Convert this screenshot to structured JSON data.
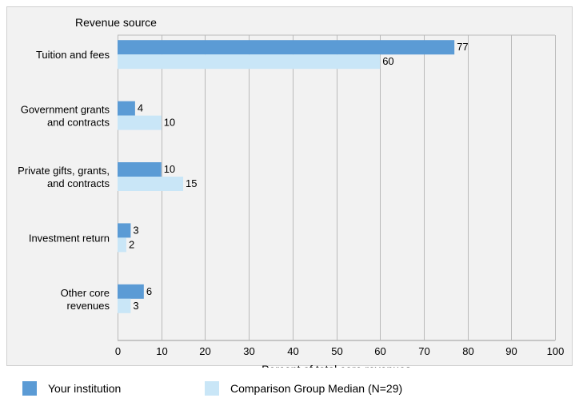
{
  "colors": {
    "primary": "#5b9bd5",
    "comparison": "#c9e6f7",
    "grid": "#b9b9b9",
    "plot_bg": "#f2f2f2"
  },
  "chart_data": {
    "type": "bar",
    "orientation": "horizontal",
    "title": "Revenue source",
    "xlabel": "Percent of total core revenues",
    "categories": [
      [
        "Tuition and fees"
      ],
      [
        "Government grants",
        "and contracts"
      ],
      [
        "Private gifts, grants,",
        "and contracts"
      ],
      [
        "Investment return"
      ],
      [
        "Other core",
        "revenues"
      ]
    ],
    "series": [
      {
        "name": "Your institution",
        "values": [
          77,
          4,
          10,
          3,
          6
        ]
      },
      {
        "name": "Comparison Group Median (N=29)",
        "values": [
          60,
          10,
          15,
          2,
          3
        ]
      }
    ],
    "xlim": [
      0,
      100
    ],
    "xticks": [
      0,
      10,
      20,
      30,
      40,
      50,
      60,
      70,
      80,
      90,
      100
    ],
    "grid": true,
    "legend_position": "bottom"
  }
}
